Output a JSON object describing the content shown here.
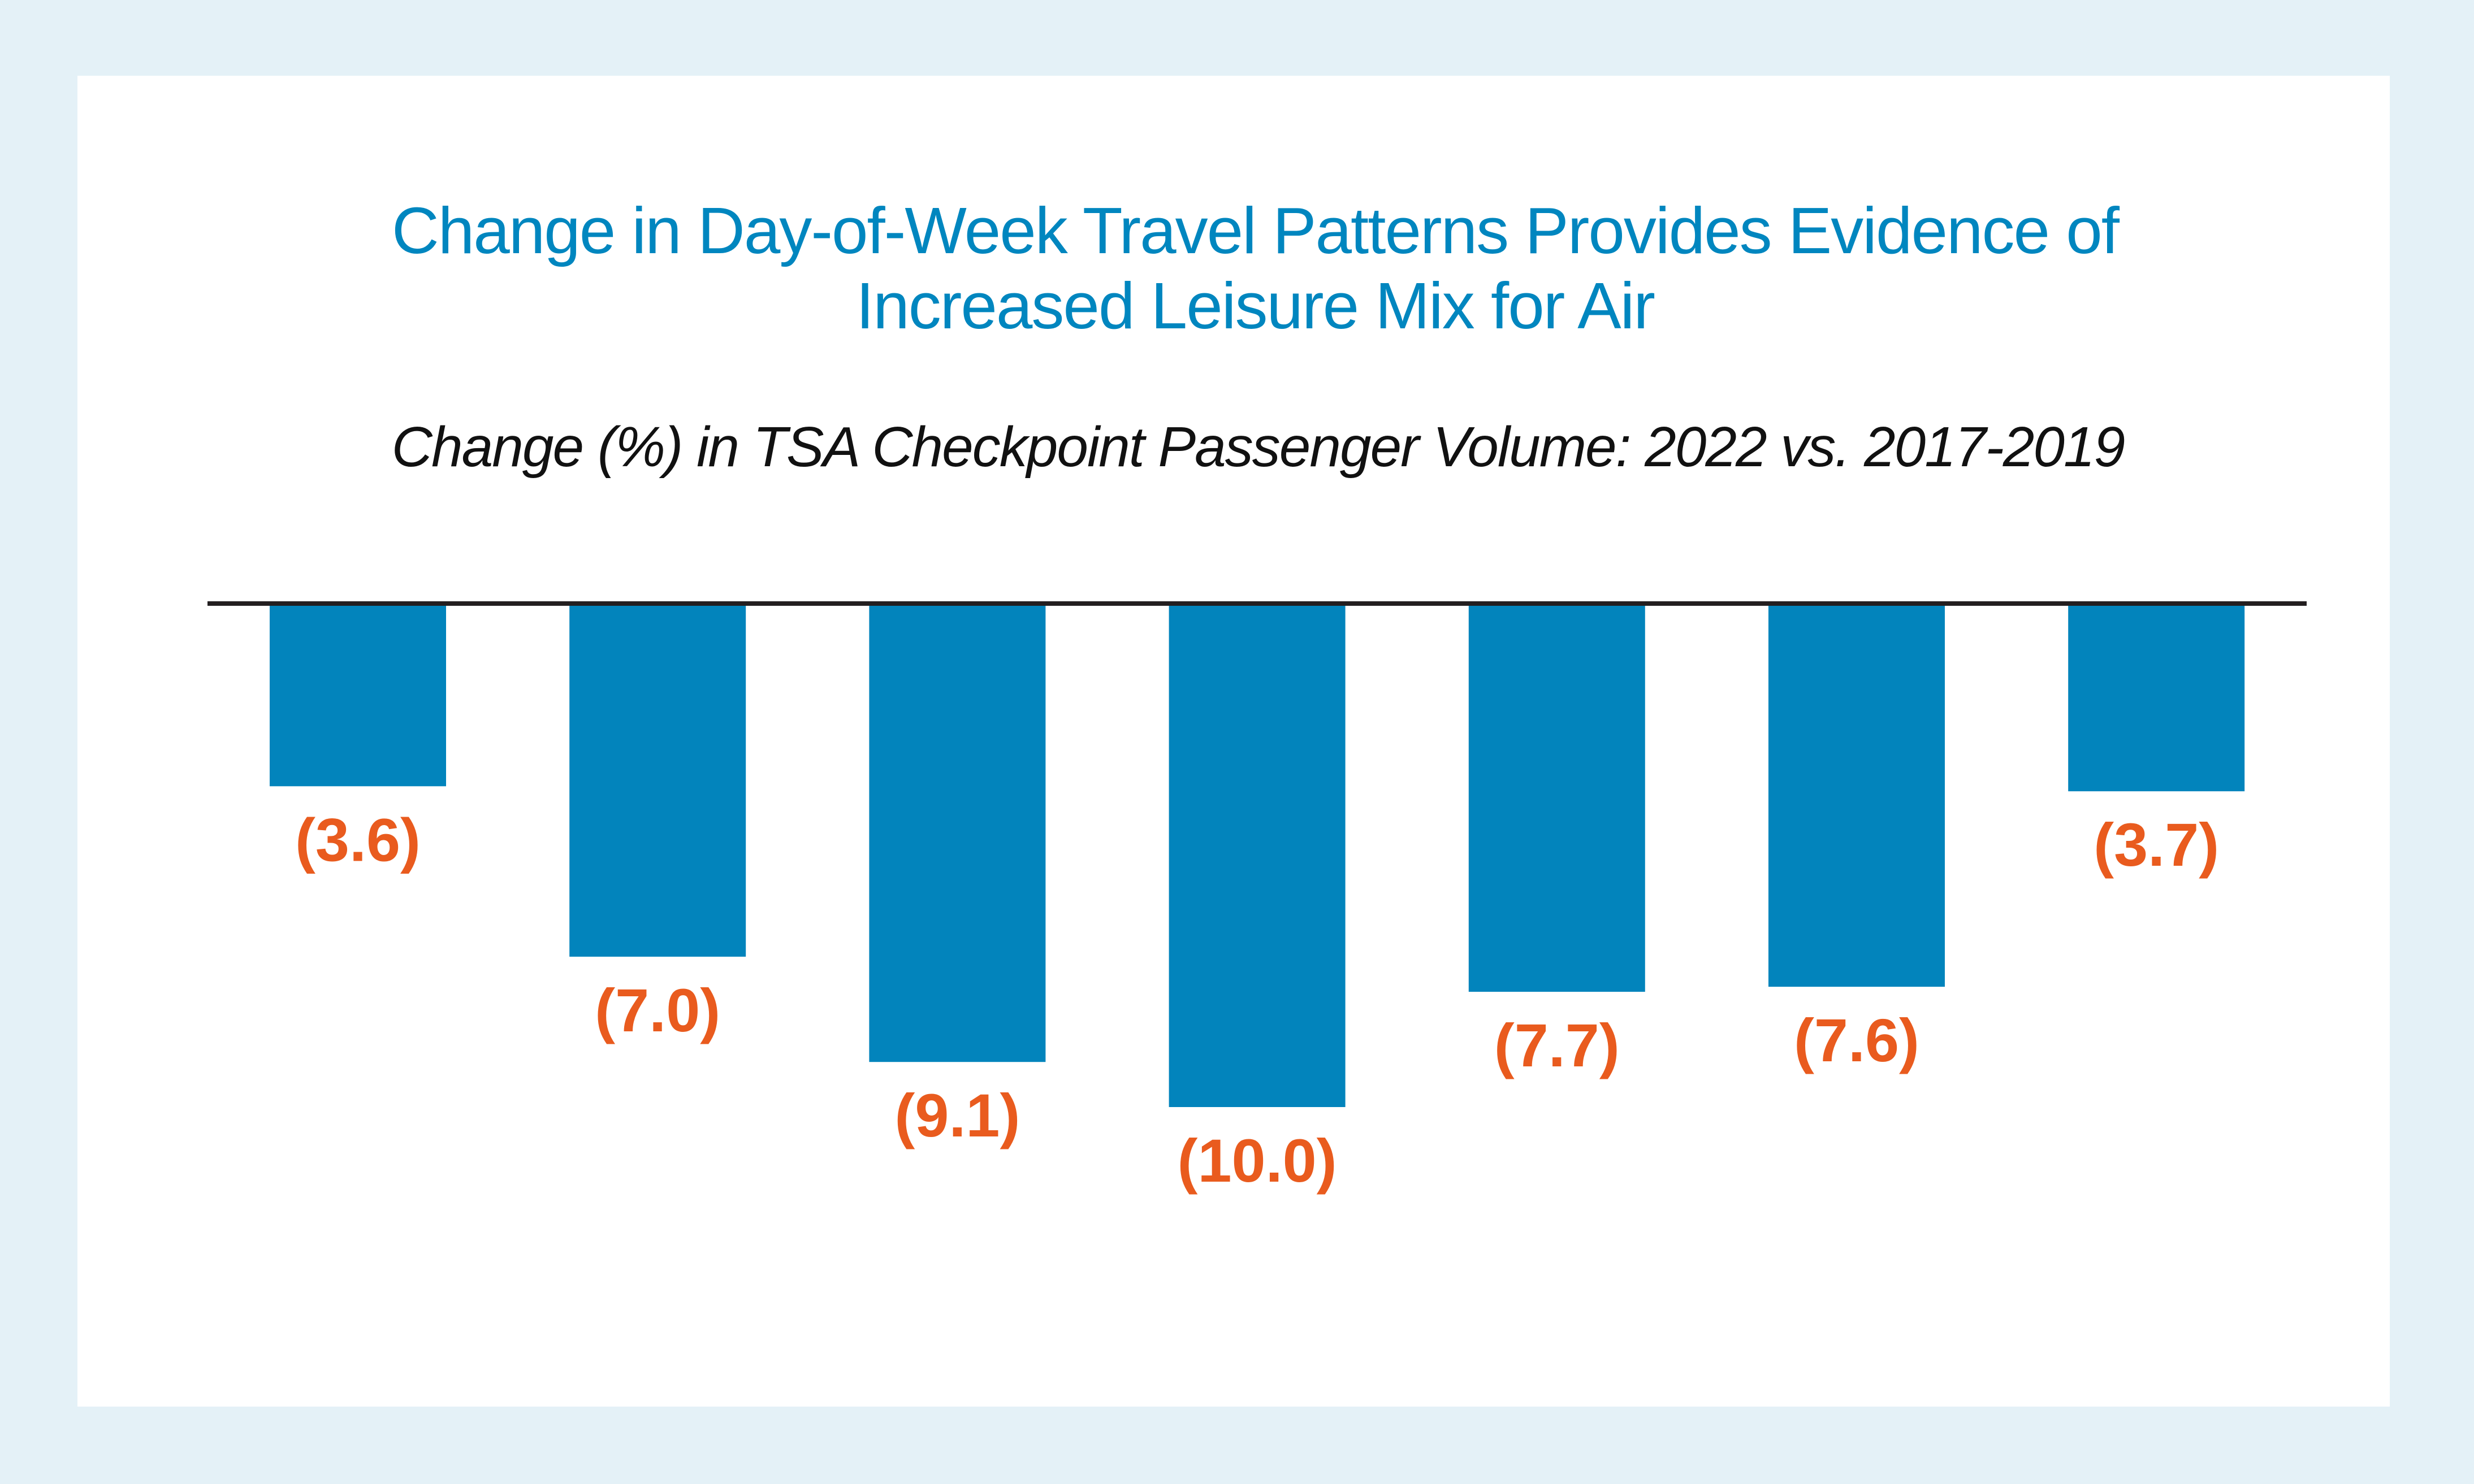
{
  "chart_data": {
    "type": "bar",
    "title": "Change in Day-of-Week Travel Patterns Provides Evidence of Increased Leisure Mix for Air",
    "title_lines": [
      "Change in Day-of-Week Travel Patterns Provides Evidence of",
      "Increased Leisure Mix for Air"
    ],
    "subtitle": "Change (%) in TSA Checkpoint Passenger Volume: 2022 vs. 2017-2019",
    "xlabel": "",
    "ylabel": "",
    "categories": [],
    "values": [
      -3.6,
      -7.0,
      -9.1,
      -10.0,
      -7.7,
      -7.6,
      -3.7
    ],
    "data_labels": [
      "(3.6)",
      "(7.0)",
      "(9.1)",
      "(10.0)",
      "(7.7)",
      "(7.6)",
      "(3.7)"
    ],
    "ylim": [
      -10,
      0
    ],
    "grid": false,
    "legend": "none",
    "colors": {
      "bar": "#0284bc",
      "label": "#e95b1e",
      "title": "#0086bf",
      "axis": "#231f20",
      "background": "#e4f1f7"
    }
  }
}
